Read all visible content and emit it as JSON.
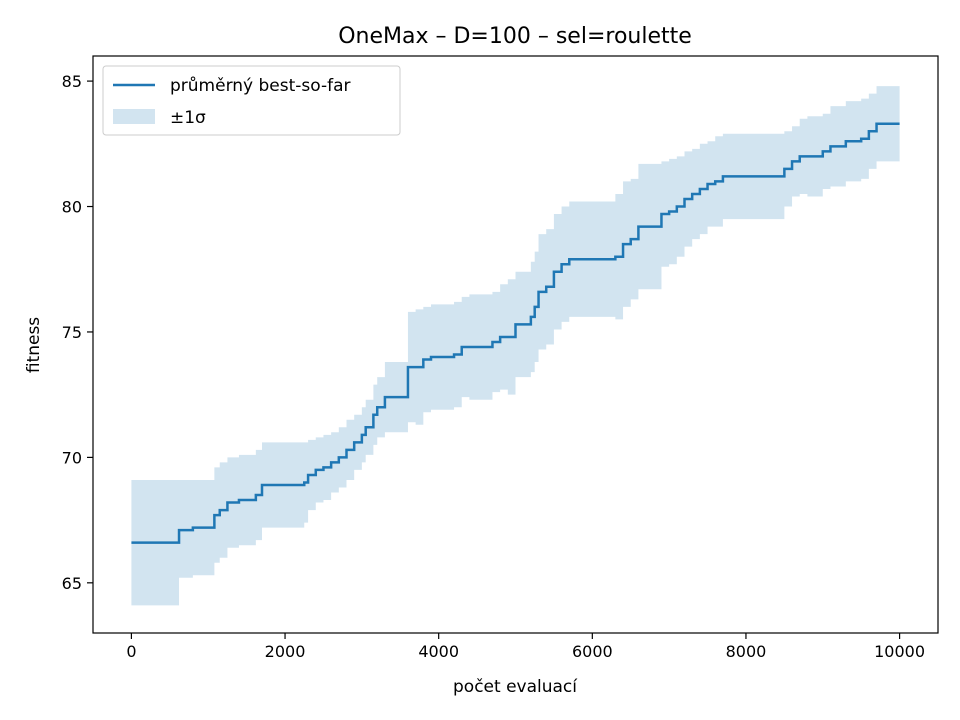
{
  "chart_data": {
    "type": "line",
    "title": "OneMax – D=100 – sel=roulette",
    "xlabel": "počet evaluací",
    "ylabel": "fitness",
    "xlim": [
      -500,
      10500
    ],
    "ylim": [
      63,
      86
    ],
    "xticks": [
      0,
      2000,
      4000,
      6000,
      8000,
      10000
    ],
    "yticks": [
      65,
      70,
      75,
      80,
      85
    ],
    "grid": false,
    "legend": {
      "placement": "upper-left",
      "entries": [
        "průměrný best-so-far",
        "±1σ"
      ]
    },
    "colors": {
      "line": "#1f77b4",
      "band": "#1f77b4",
      "band_alpha": 0.2
    },
    "series": [
      {
        "name": "průměrný best-so-far",
        "x": [
          0,
          600,
          620,
          800,
          1050,
          1080,
          1150,
          1250,
          1400,
          1620,
          1700,
          2000,
          2250,
          2300,
          2400,
          2500,
          2600,
          2700,
          2800,
          2900,
          3000,
          3050,
          3150,
          3200,
          3300,
          3450,
          3600,
          3620,
          3700,
          3800,
          3900,
          4000,
          4200,
          4300,
          4400,
          4700,
          4800,
          4900,
          5000,
          5200,
          5250,
          5300,
          5400,
          5500,
          5600,
          5700,
          6000,
          6300,
          6400,
          6500,
          6600,
          6900,
          7000,
          7100,
          7200,
          7300,
          7400,
          7500,
          7600,
          7700,
          7800,
          8000,
          8500,
          8600,
          8700,
          8800,
          9000,
          9100,
          9300,
          9500,
          9600,
          9700,
          10000
        ],
        "y": [
          66.6,
          66.6,
          67.1,
          67.2,
          67.2,
          67.7,
          67.9,
          68.2,
          68.3,
          68.5,
          68.9,
          68.9,
          69.0,
          69.3,
          69.5,
          69.6,
          69.8,
          70.0,
          70.3,
          70.6,
          70.9,
          71.2,
          71.7,
          72.0,
          72.4,
          72.4,
          73.6,
          73.6,
          73.6,
          73.9,
          74.0,
          74.0,
          74.1,
          74.4,
          74.4,
          74.6,
          74.8,
          74.8,
          75.3,
          75.6,
          76.0,
          76.6,
          76.8,
          77.4,
          77.7,
          77.9,
          77.9,
          78.0,
          78.5,
          78.7,
          79.2,
          79.7,
          79.8,
          80.0,
          80.3,
          80.5,
          80.7,
          80.9,
          81.0,
          81.2,
          81.2,
          81.2,
          81.5,
          81.8,
          82.0,
          82.0,
          82.2,
          82.4,
          82.6,
          82.7,
          83.0,
          83.3,
          83.3
        ]
      },
      {
        "name": "±1σ",
        "x": [
          0,
          600,
          620,
          800,
          1050,
          1080,
          1150,
          1250,
          1400,
          1620,
          1700,
          2000,
          2250,
          2300,
          2400,
          2500,
          2600,
          2700,
          2800,
          2900,
          3000,
          3050,
          3150,
          3200,
          3300,
          3450,
          3600,
          3620,
          3700,
          3800,
          3900,
          4000,
          4200,
          4300,
          4400,
          4700,
          4800,
          4900,
          5000,
          5200,
          5250,
          5300,
          5400,
          5500,
          5600,
          5700,
          6000,
          6300,
          6400,
          6500,
          6600,
          6900,
          7000,
          7100,
          7200,
          7300,
          7400,
          7500,
          7600,
          7700,
          7800,
          8000,
          8500,
          8600,
          8700,
          8800,
          9000,
          9100,
          9300,
          9500,
          9600,
          9700,
          10000
        ],
        "upper": [
          69.1,
          69.1,
          69.1,
          69.1,
          69.1,
          69.6,
          69.8,
          70.0,
          70.1,
          70.3,
          70.6,
          70.6,
          70.6,
          70.7,
          70.8,
          70.9,
          71.0,
          71.2,
          71.5,
          71.7,
          72.0,
          72.3,
          72.9,
          73.2,
          73.8,
          73.8,
          75.8,
          75.8,
          75.9,
          76.0,
          76.1,
          76.1,
          76.2,
          76.4,
          76.5,
          76.6,
          76.9,
          77.1,
          77.4,
          77.8,
          78.2,
          78.9,
          79.1,
          79.7,
          80.0,
          80.2,
          80.2,
          80.5,
          81.0,
          81.1,
          81.7,
          81.8,
          81.9,
          82.0,
          82.2,
          82.3,
          82.5,
          82.6,
          82.8,
          82.9,
          82.9,
          82.9,
          83.0,
          83.2,
          83.5,
          83.6,
          83.7,
          84.0,
          84.2,
          84.3,
          84.5,
          84.8,
          84.8
        ],
        "lower": [
          64.1,
          64.1,
          65.2,
          65.3,
          65.3,
          65.8,
          66.0,
          66.4,
          66.5,
          66.7,
          67.2,
          67.2,
          67.4,
          67.9,
          68.2,
          68.3,
          68.6,
          68.8,
          69.1,
          69.5,
          69.8,
          70.1,
          70.5,
          70.8,
          71.0,
          71.0,
          71.4,
          71.4,
          71.3,
          71.8,
          71.9,
          71.9,
          72.0,
          72.4,
          72.3,
          72.6,
          72.7,
          72.5,
          73.2,
          73.4,
          73.8,
          74.3,
          74.5,
          75.1,
          75.4,
          75.6,
          75.6,
          75.5,
          76.0,
          76.3,
          76.7,
          77.6,
          77.7,
          78.0,
          78.4,
          78.7,
          78.9,
          79.2,
          79.2,
          79.5,
          79.5,
          79.5,
          80.0,
          80.4,
          80.5,
          80.4,
          80.7,
          80.8,
          81.0,
          81.1,
          81.5,
          81.8,
          81.8
        ]
      }
    ]
  }
}
